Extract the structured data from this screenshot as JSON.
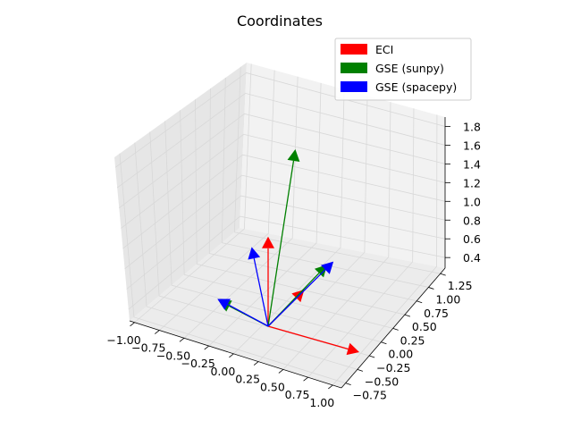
{
  "chart_data": {
    "type": "quiver3d",
    "title": "Coordinates",
    "xlabel": "",
    "ylabel": "",
    "zlabel": "",
    "x_ticks": [
      "−1.00",
      "−0.75",
      "−0.50",
      "−0.25",
      "0.00",
      "0.25",
      "0.50",
      "0.75",
      "1.00"
    ],
    "y_ticks": [
      "−0.75",
      "−0.50",
      "−0.25",
      "0.00",
      "0.25",
      "0.50",
      "0.75",
      "1.00",
      "1.25"
    ],
    "z_ticks": [
      "0.4",
      "0.6",
      "0.8",
      "1.0",
      "1.2",
      "1.4",
      "1.6",
      "1.8"
    ],
    "xlim": [
      -1.0,
      1.0
    ],
    "ylim": [
      -0.75,
      1.25
    ],
    "zlim": [
      0.3,
      1.9
    ],
    "legend_position": "top-right",
    "series": [
      {
        "name": "ECI",
        "color": "#ff0000",
        "vectors": [
          [
            1,
            0,
            0
          ],
          [
            0,
            1,
            0
          ],
          [
            0,
            0,
            1
          ]
        ]
      },
      {
        "name": "GSE (sunpy)",
        "color": "#008000",
        "vectors": [
          [
            0.25,
            1.0,
            0.35
          ],
          [
            -0.6,
            0.15,
            0.05
          ],
          [
            0.1,
            0.5,
            1.8
          ]
        ]
      },
      {
        "name": "GSE (spacepy)",
        "color": "#0000ff",
        "vectors": [
          [
            0.3,
            1.05,
            0.38
          ],
          [
            -0.62,
            0.16,
            0.06
          ],
          [
            -0.22,
            0.1,
            0.78
          ]
        ]
      }
    ]
  }
}
